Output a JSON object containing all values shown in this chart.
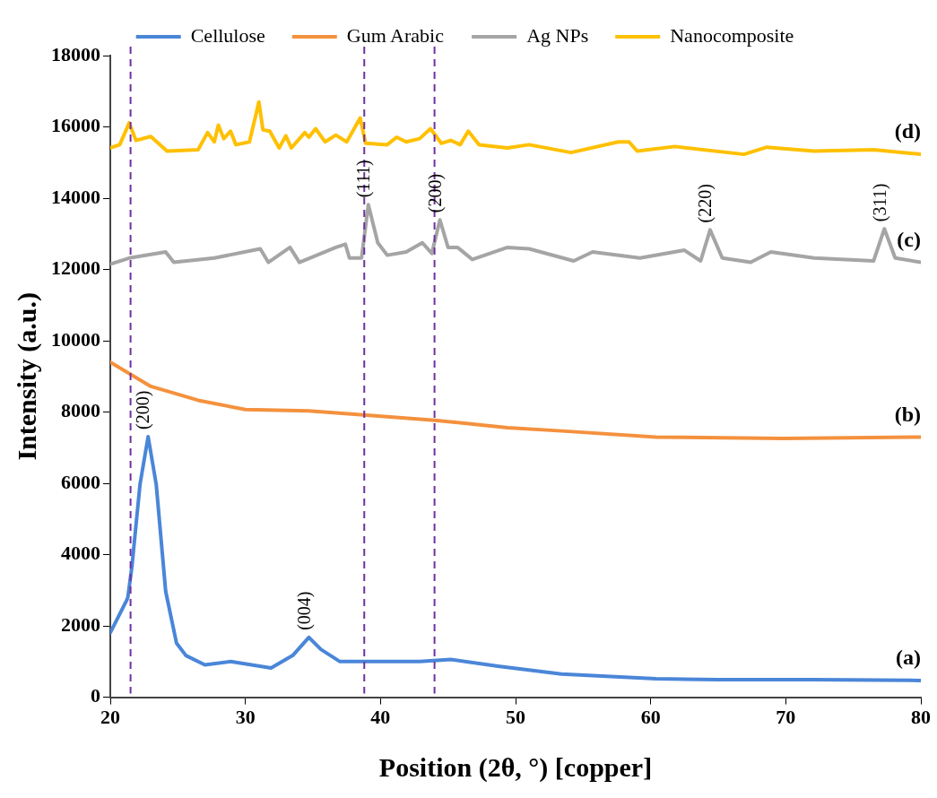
{
  "chart_data": {
    "type": "line",
    "xlabel": "Position (2θ, °) [copper]",
    "ylabel": "Intensity (a.u.)",
    "xlim": [
      20,
      80
    ],
    "xticks": [
      20,
      30,
      40,
      50,
      60,
      70,
      80
    ],
    "ylim": [
      0,
      18000
    ],
    "yticks": [
      0,
      2000,
      4000,
      6000,
      8000,
      10000,
      12000,
      14000,
      16000,
      18000
    ],
    "grid": false,
    "legend": "top",
    "marker": "none",
    "line_style": "solid",
    "series": [
      {
        "name": "Cellulose",
        "color": "#4a86d8",
        "x": [
          20,
          21.2,
          21.3,
          21.6,
          22.2,
          22.8,
          23.4,
          24.1,
          24.9,
          25.6,
          27.0,
          28.9,
          31.9,
          33.5,
          34.7,
          35.6,
          37.0,
          39.4,
          42.9,
          45.2,
          48.7,
          53.4,
          60.4,
          65.0,
          72.0,
          80.0
        ],
        "values": [
          1810,
          2710,
          2800,
          3660,
          5970,
          7310,
          5970,
          2970,
          1520,
          1170,
          910,
          1000,
          820,
          1170,
          1680,
          1340,
          1000,
          1000,
          1000,
          1060,
          870,
          650,
          520,
          490,
          490,
          470
        ]
      },
      {
        "name": "Gum Arabic",
        "color": "#f4913e",
        "x": [
          20,
          23.0,
          26.5,
          30.0,
          34.7,
          39.4,
          44.0,
          49.4,
          53.4,
          60.4,
          69.8,
          80
        ],
        "values": [
          9400,
          8720,
          8330,
          8070,
          8030,
          7900,
          7770,
          7560,
          7470,
          7300,
          7260,
          7300
        ]
      },
      {
        "name": "Ag NPs",
        "color": "#a5a5a5",
        "x": [
          20,
          21.4,
          24.1,
          24.7,
          27.7,
          31.1,
          31.7,
          33.3,
          34.0,
          36.7,
          37.4,
          37.7,
          38.6,
          39.1,
          39.8,
          40.5,
          41.9,
          43.1,
          43.8,
          44.4,
          45.0,
          45.7,
          46.8,
          49.4,
          51.0,
          54.3,
          55.7,
          59.2,
          62.5,
          63.7,
          64.4,
          65.3,
          67.4,
          68.9,
          72.1,
          76.5,
          77.3,
          78.1,
          80
        ],
        "values": [
          12150,
          12320,
          12490,
          12200,
          12320,
          12580,
          12200,
          12620,
          12200,
          12620,
          12710,
          12320,
          12320,
          13820,
          12750,
          12400,
          12490,
          12750,
          12450,
          13390,
          12620,
          12620,
          12280,
          12620,
          12580,
          12240,
          12490,
          12320,
          12540,
          12240,
          13110,
          12320,
          12200,
          12490,
          12320,
          12240,
          13140,
          12320,
          12200
        ]
      },
      {
        "name": "Nanocomposite",
        "color": "#ffc000",
        "x": [
          20,
          20.7,
          21.4,
          21.9,
          23.0,
          24.2,
          26.5,
          27.2,
          27.7,
          28.0,
          28.4,
          28.9,
          29.3,
          30.3,
          31.0,
          31.3,
          31.8,
          32.5,
          33.0,
          33.4,
          34.4,
          34.7,
          35.2,
          35.9,
          36.7,
          37.5,
          38.5,
          38.9,
          40.5,
          41.2,
          41.9,
          42.9,
          43.7,
          44.5,
          45.2,
          45.9,
          46.5,
          47.3,
          49.4,
          51.0,
          54.1,
          57.6,
          58.4,
          59.0,
          61.8,
          66.9,
          68.6,
          72.1,
          76.5,
          80
        ],
        "values": [
          15410,
          15500,
          16110,
          15620,
          15730,
          15320,
          15360,
          15840,
          15580,
          16050,
          15670,
          15880,
          15500,
          15580,
          16700,
          15920,
          15880,
          15410,
          15750,
          15410,
          15840,
          15710,
          15950,
          15580,
          15770,
          15580,
          16250,
          15540,
          15500,
          15710,
          15580,
          15670,
          15950,
          15540,
          15620,
          15500,
          15880,
          15500,
          15410,
          15500,
          15280,
          15580,
          15580,
          15320,
          15450,
          15230,
          15430,
          15320,
          15360,
          15230
        ]
      }
    ],
    "ref_lines": [
      {
        "axis": "x",
        "value": 21.5,
        "color": "#7030a0",
        "line_style": "dashed"
      },
      {
        "axis": "x",
        "value": 38.8,
        "color": "#7030a0",
        "line_style": "dashed"
      },
      {
        "axis": "x",
        "value": 44.0,
        "color": "#7030a0",
        "line_style": "dashed"
      }
    ],
    "annotations": [
      "(a)",
      "(b)",
      "(c)",
      "(d)",
      {
        "text": "(200)",
        "x": 22.8,
        "y": 7310
      },
      {
        "text": "(004)",
        "x": 34.7,
        "y": 1680
      },
      {
        "text": "(111)",
        "x": 39.1,
        "y": 13820
      },
      {
        "text": "(200)",
        "x": 44.4,
        "y": 13390
      },
      {
        "text": "(220)",
        "x": 64.4,
        "y": 13110
      },
      {
        "text": "(311)",
        "x": 77.3,
        "y": 13140
      }
    ]
  }
}
